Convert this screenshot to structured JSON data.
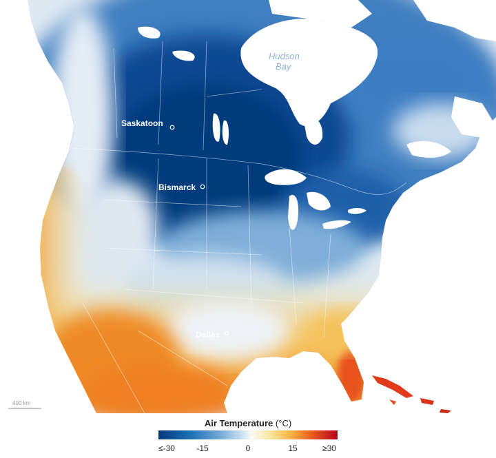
{
  "map": {
    "water_labels": [
      {
        "text_line1": "Hudson",
        "text_line2": "Bay"
      }
    ],
    "cities": [
      {
        "name": "Saskatoon"
      },
      {
        "name": "Bismarck"
      },
      {
        "name": "Dallas"
      }
    ],
    "scale_bar": {
      "label": "400 km"
    }
  },
  "legend": {
    "title": "Air Temperature",
    "unit": "(°C)",
    "ticks": [
      "≤-30",
      "-15",
      "0",
      "15",
      "≥30"
    ],
    "colors": [
      "#063a7c",
      "#1f6fb4",
      "#6fa8d6",
      "#d6e7f3",
      "#fbfbf4",
      "#f7e7a2",
      "#f6b443",
      "#e85a1c",
      "#b5001d"
    ]
  }
}
